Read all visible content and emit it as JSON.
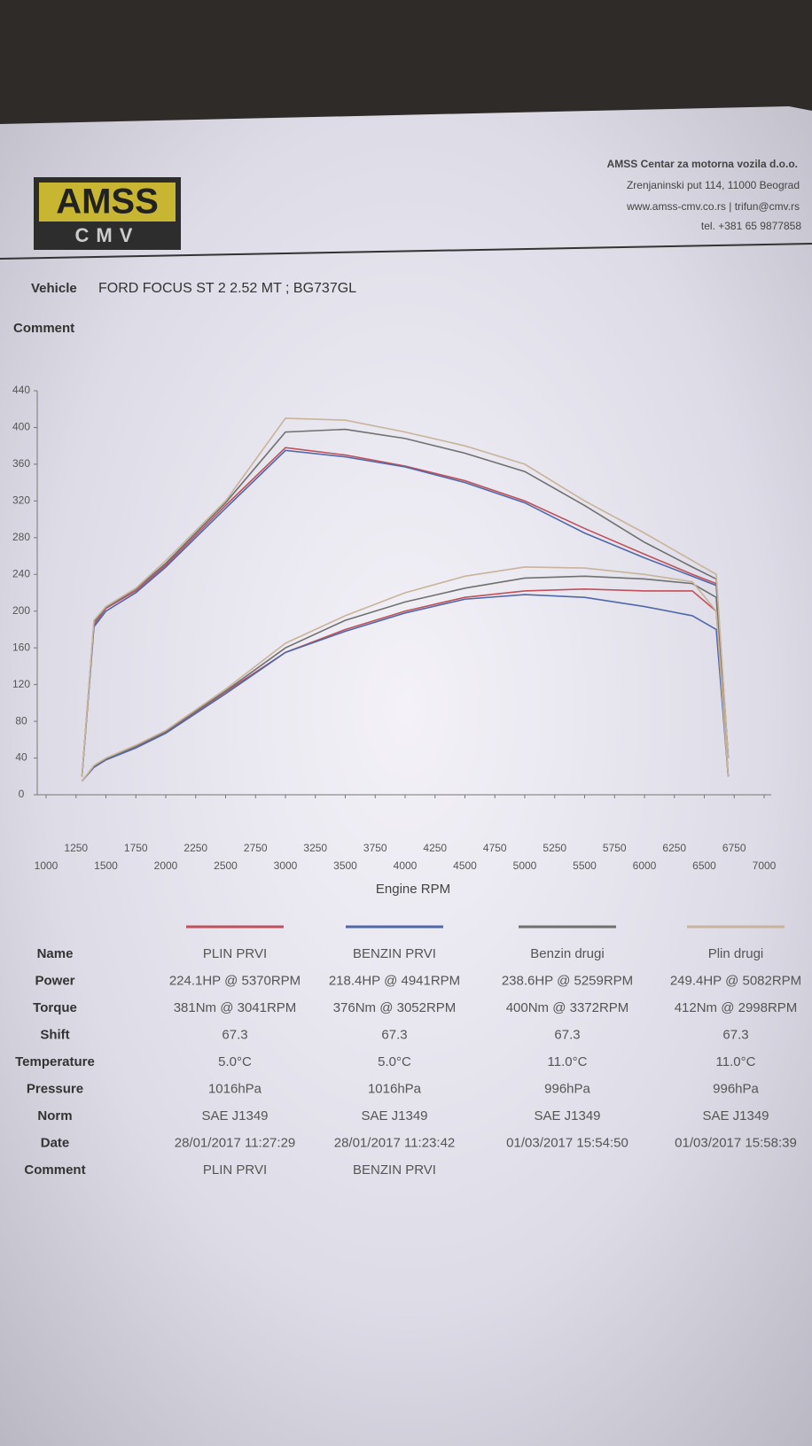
{
  "header": {
    "logo_top": "AMSS",
    "logo_bottom": "CMV",
    "company": "AMSS Centar za motorna vozila d.o.o.",
    "address": "Zrenjaninski put 114, 11000 Beograd",
    "web": "www.amss-cmv.co.rs  | trifun@cmv.rs",
    "phone": "tel. +381 65 9877858"
  },
  "vehicle": {
    "label": "Vehicle",
    "value": "FORD FOCUS ST 2 2.52 MT ; BG737GL"
  },
  "comment_label": "Comment",
  "chart_data": {
    "type": "line",
    "x_label": "Engine RPM",
    "xlim": [
      1000,
      7000
    ],
    "xticks": [
      1000,
      1250,
      1500,
      1750,
      2000,
      2250,
      2500,
      2750,
      3000,
      3250,
      3500,
      3750,
      4000,
      4250,
      4500,
      4750,
      5000,
      5250,
      5500,
      5750,
      6000,
      6250,
      6500,
      6750,
      7000
    ],
    "ylim": [
      0,
      440
    ],
    "yticks": [
      0,
      40,
      80,
      120,
      160,
      200,
      240,
      280,
      320,
      360,
      400,
      440
    ],
    "x": [
      1300,
      1400,
      1500,
      1750,
      2000,
      2500,
      3000,
      3500,
      4000,
      4500,
      5000,
      5500,
      6000,
      6400,
      6600,
      6700
    ],
    "series": [
      {
        "name": "PLIN PRVI",
        "color": "#c0505a",
        "values": [
          20,
          185,
          203,
          222,
          250,
          315,
          378,
          370,
          358,
          342,
          320,
          290,
          262,
          240,
          230,
          40
        ],
        "power": [
          15,
          30,
          38,
          52,
          68,
          112,
          155,
          180,
          200,
          215,
          222,
          224,
          222,
          222,
          200,
          20
        ]
      },
      {
        "name": "BENZIN PRVI",
        "color": "#5068a8",
        "values": [
          20,
          183,
          200,
          220,
          248,
          312,
          375,
          368,
          357,
          340,
          318,
          285,
          258,
          238,
          228,
          40
        ],
        "power": [
          15,
          30,
          38,
          51,
          67,
          110,
          155,
          178,
          198,
          213,
          218,
          215,
          205,
          195,
          180,
          20
        ]
      },
      {
        "name": "Benzin drugi",
        "color": "#707070",
        "values": [
          20,
          188,
          204,
          224,
          252,
          318,
          395,
          398,
          388,
          372,
          352,
          315,
          275,
          248,
          235,
          40
        ],
        "power": [
          15,
          31,
          39,
          53,
          69,
          113,
          160,
          190,
          210,
          225,
          236,
          238,
          235,
          230,
          215,
          20
        ]
      },
      {
        "name": "Plin drugi",
        "color": "#c8b49a",
        "values": [
          20,
          190,
          205,
          225,
          255,
          320,
          410,
          408,
          395,
          380,
          360,
          320,
          285,
          255,
          240,
          40
        ],
        "power": [
          15,
          32,
          40,
          54,
          70,
          115,
          165,
          195,
          220,
          238,
          248,
          247,
          240,
          232,
          200,
          20
        ]
      }
    ]
  },
  "results": {
    "labels": [
      "Name",
      "Power",
      "Torque",
      "Shift",
      "Temperature",
      "Pressure",
      "Norm",
      "Date",
      "Comment"
    ],
    "runs": [
      [
        "224.1HP @  5370RPM",
        "381Nm @ 3041RPM",
        "67.3",
        "5.0°C",
        "1016hPa",
        "SAE J1349",
        "28/01/2017 11:27:29",
        "PLIN PRVI"
      ],
      [
        "218.4HP @  4941RPM",
        "376Nm @ 3052RPM",
        "67.3",
        "5.0°C",
        "1016hPa",
        "SAE J1349",
        "28/01/2017 11:23:42",
        "BENZIN PRVI"
      ],
      [
        "238.6HP @  5259RPM",
        "400Nm @ 3372RPM",
        "67.3",
        "11.0°C",
        "996hPa",
        "SAE J1349",
        "01/03/2017 15:54:50"
      ],
      [
        "249.4HP @  5082RPM",
        "412Nm @ 2998RPM",
        "67.3",
        "11.0°C",
        "996hPa",
        "SAE J1349",
        "01/03/2017 15:58:39"
      ]
    ]
  }
}
